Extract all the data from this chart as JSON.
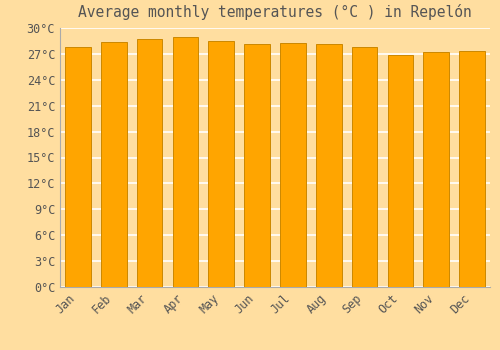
{
  "title": "Average monthly temperatures (°C ) in Repelón",
  "months": [
    "Jan",
    "Feb",
    "Mar",
    "Apr",
    "May",
    "Jun",
    "Jul",
    "Aug",
    "Sep",
    "Oct",
    "Nov",
    "Dec"
  ],
  "values": [
    27.8,
    28.4,
    28.7,
    28.9,
    28.5,
    28.2,
    28.3,
    28.1,
    27.8,
    26.9,
    27.2,
    27.3
  ],
  "bar_color": "#FFA500",
  "bar_edge_color": "#CC8800",
  "background_color": "#FFDEA0",
  "plot_bg_color": "#FFDEA0",
  "grid_color": "#FFFFFF",
  "text_color": "#555555",
  "ylim": [
    0,
    30
  ],
  "yticks": [
    0,
    3,
    6,
    9,
    12,
    15,
    18,
    21,
    24,
    27,
    30
  ],
  "title_fontsize": 10.5,
  "tick_fontsize": 8.5
}
